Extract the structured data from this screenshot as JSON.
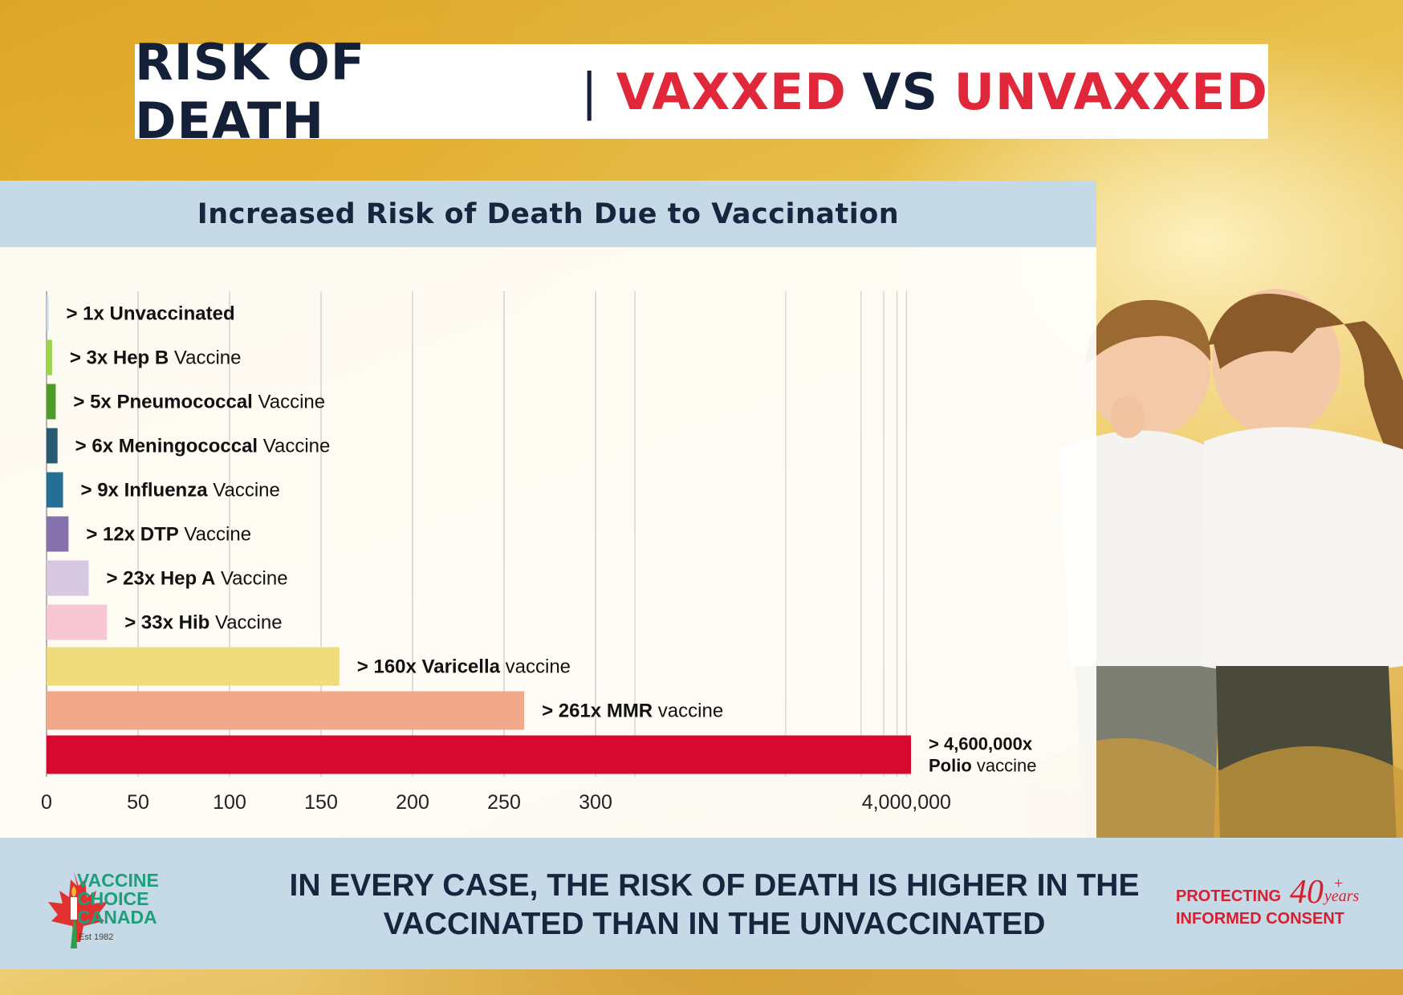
{
  "title": {
    "part1": "RISK OF DEATH",
    "separator": "|",
    "part2": "VAXXED",
    "part3": "VS",
    "part4": "UNVAXXED"
  },
  "colors": {
    "title_dark": "#142038",
    "title_red": "#e0283a",
    "panel_blue": "#c5d9e6"
  },
  "chart_data": {
    "type": "bar",
    "orientation": "horizontal",
    "title": "Increased Risk of Death Due to Vaccination",
    "xlabel": "",
    "ylabel": "",
    "x_ticks": [
      "0",
      "50",
      "100",
      "150",
      "200",
      "250",
      "300",
      "4,000,000"
    ],
    "x_scale": "broken (linear 0–300, then compressed to 4,000,000)",
    "grid": true,
    "bars": [
      {
        "value": 1,
        "prefix": "> ",
        "bold": "1x Unvaccinated",
        "rest": "",
        "color": "#c7dcec"
      },
      {
        "value": 3,
        "prefix": "> ",
        "bold": "3x Hep B",
        "rest": " Vaccine",
        "color": "#9bd34c"
      },
      {
        "value": 5,
        "prefix": "> ",
        "bold": "5x Pneumococcal",
        "rest": " Vaccine",
        "color": "#4e9a2a"
      },
      {
        "value": 6,
        "prefix": "> ",
        "bold": "6x Meningococcal",
        "rest": " Vaccine",
        "color": "#2a5a70"
      },
      {
        "value": 9,
        "prefix": "> ",
        "bold": "9x Influenza",
        "rest": " Vaccine",
        "color": "#256f96"
      },
      {
        "value": 12,
        "prefix": "> ",
        "bold": "12x DTP",
        "rest": " Vaccine",
        "color": "#8572aa"
      },
      {
        "value": 23,
        "prefix": "> ",
        "bold": "23x Hep A",
        "rest": " Vaccine",
        "color": "#d7c8e2"
      },
      {
        "value": 33,
        "prefix": "> ",
        "bold": "33x Hib",
        "rest": " Vaccine",
        "color": "#f7c8d4"
      },
      {
        "value": 160,
        "prefix": "> ",
        "bold": "160x Varicella",
        "rest": " vaccine",
        "color": "#f0dc7c"
      },
      {
        "value": 261,
        "prefix": "> ",
        "bold": "261x MMR",
        "rest": " vaccine",
        "color": "#f2a88a"
      },
      {
        "value": 4600000,
        "prefix": "> ",
        "bold": "4,600,000x",
        "bold2": "Polio",
        "rest": " vaccine",
        "color": "#d8092e"
      }
    ]
  },
  "footer": {
    "message_line1": "IN EVERY CASE, THE RISK OF DEATH IS HIGHER IN THE",
    "message_line2": "VACCINATED THAN IN THE UNVACCINATED",
    "logo_line1": "VACCINE",
    "logo_line2": "CHOICE",
    "logo_line3": "CANADA",
    "logo_est": "Est 1982",
    "badge_line1": "PROTECTING",
    "badge_line2": "INFORMED CONSENT",
    "badge_number": "40",
    "badge_plus": "+",
    "badge_years": "years",
    "logo_green": "#1f9e7a",
    "badge_red": "#d7202f"
  }
}
